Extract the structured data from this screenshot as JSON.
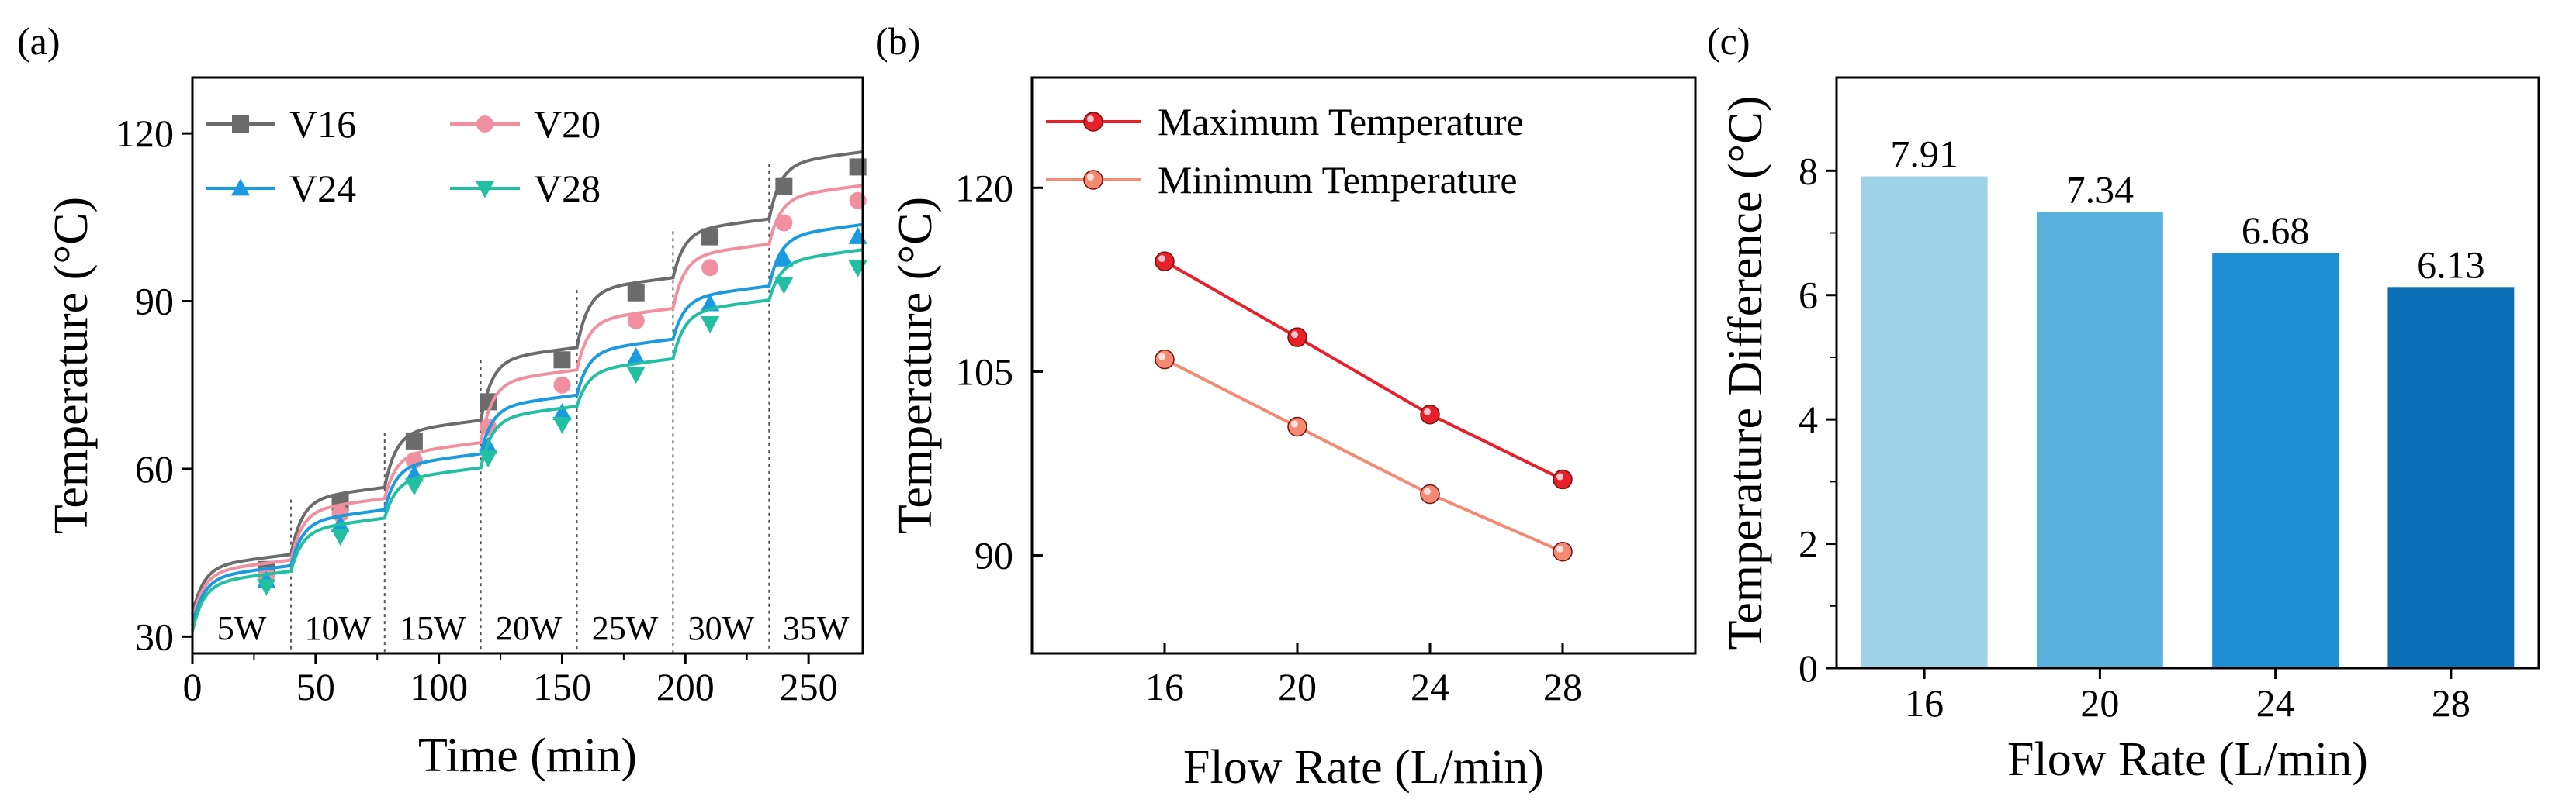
{
  "chart_data": [
    {
      "panel": "(a)",
      "type": "line",
      "xlabel": "Time (min)",
      "ylabel": "Temperature (°C)",
      "xlim": [
        0,
        272
      ],
      "ylim": [
        27,
        130
      ],
      "xticks": [
        0,
        50,
        100,
        150,
        200,
        250
      ],
      "yticks": [
        30,
        60,
        90,
        120
      ],
      "legend_position": "top-left",
      "power_steps": [
        {
          "label": "5W",
          "start": 0,
          "end": 40
        },
        {
          "label": "10W",
          "start": 40,
          "end": 78
        },
        {
          "label": "15W",
          "start": 78,
          "end": 117
        },
        {
          "label": "20W",
          "start": 117,
          "end": 156
        },
        {
          "label": "25W",
          "start": 156,
          "end": 195
        },
        {
          "label": "30W",
          "start": 195,
          "end": 234
        },
        {
          "label": "35W",
          "start": 234,
          "end": 272
        }
      ],
      "series": [
        {
          "name": "V16",
          "color": "#6b6b6b",
          "marker": "square",
          "plateaus": [
            42.5,
            54.5,
            66.5,
            79.5,
            92.0,
            102.5,
            114.5
          ],
          "start": 34,
          "marker_x": [
            30,
            60,
            90,
            120,
            150,
            180,
            210,
            240,
            270
          ],
          "marker_y": [
            42,
            54,
            65,
            72,
            79.5,
            91.5,
            101.5,
            110.5,
            114
          ]
        },
        {
          "name": "V20",
          "color": "#f08fa0",
          "marker": "circle",
          "plateaus": [
            41.5,
            52.5,
            62.5,
            75.5,
            86.5,
            98.0,
            108.5
          ],
          "start": 33,
          "marker_x": [
            30,
            60,
            90,
            120,
            150,
            180,
            210,
            240,
            270
          ],
          "marker_y": [
            41,
            52,
            61.5,
            67.5,
            75,
            86.5,
            96,
            104,
            108
          ]
        },
        {
          "name": "V24",
          "color": "#1a9ae0",
          "marker": "triangle-up",
          "plateaus": [
            40.5,
            50.5,
            60.5,
            71.0,
            81.0,
            90.5,
            101.5
          ],
          "start": 32,
          "marker_x": [
            30,
            60,
            90,
            120,
            150,
            180,
            210,
            240,
            270
          ],
          "marker_y": [
            40,
            50,
            59,
            64,
            70,
            80,
            89.5,
            97.5,
            101.5
          ]
        },
        {
          "name": "V28",
          "color": "#20c0a0",
          "marker": "triangle-down",
          "plateaus": [
            39.5,
            49.0,
            58.0,
            69.0,
            77.5,
            88.0,
            97.0
          ],
          "start": 31,
          "marker_x": [
            30,
            60,
            90,
            120,
            150,
            180,
            210,
            240,
            270
          ],
          "marker_y": [
            39,
            48,
            57,
            62,
            68,
            77,
            86,
            93,
            96
          ]
        }
      ]
    },
    {
      "panel": "(b)",
      "type": "line",
      "xlabel": "Flow Rate (L/min)",
      "ylabel": "Temperature (°C)",
      "categories": [
        "16",
        "20",
        "24",
        "28"
      ],
      "xlim": [
        12,
        32
      ],
      "ylim": [
        82,
        129
      ],
      "yticks": [
        90,
        105,
        120
      ],
      "legend_position": "top-left",
      "series": [
        {
          "name": "Maximum Temperature",
          "color": "#e8202a",
          "values": [
            114.0,
            107.8,
            101.5,
            96.2
          ]
        },
        {
          "name": "Minimum Temperature",
          "color": "#f58a72",
          "values": [
            106.0,
            100.5,
            95.0,
            90.3
          ]
        }
      ]
    },
    {
      "panel": "(c)",
      "type": "bar",
      "xlabel": "Flow Rate (L/min)",
      "ylabel": "Temperature Difference (°C)",
      "categories": [
        "16",
        "20",
        "24",
        "28"
      ],
      "values": [
        7.91,
        7.34,
        6.68,
        6.13
      ],
      "data_labels": [
        "7.91",
        "7.34",
        "6.68",
        "6.13"
      ],
      "colors": [
        "#9fd4e8",
        "#5ab2dc",
        "#1e8fd0",
        "#0a6fb4"
      ],
      "ylim": [
        0,
        9.5
      ],
      "yticks": [
        0,
        2,
        4,
        6,
        8
      ]
    }
  ]
}
